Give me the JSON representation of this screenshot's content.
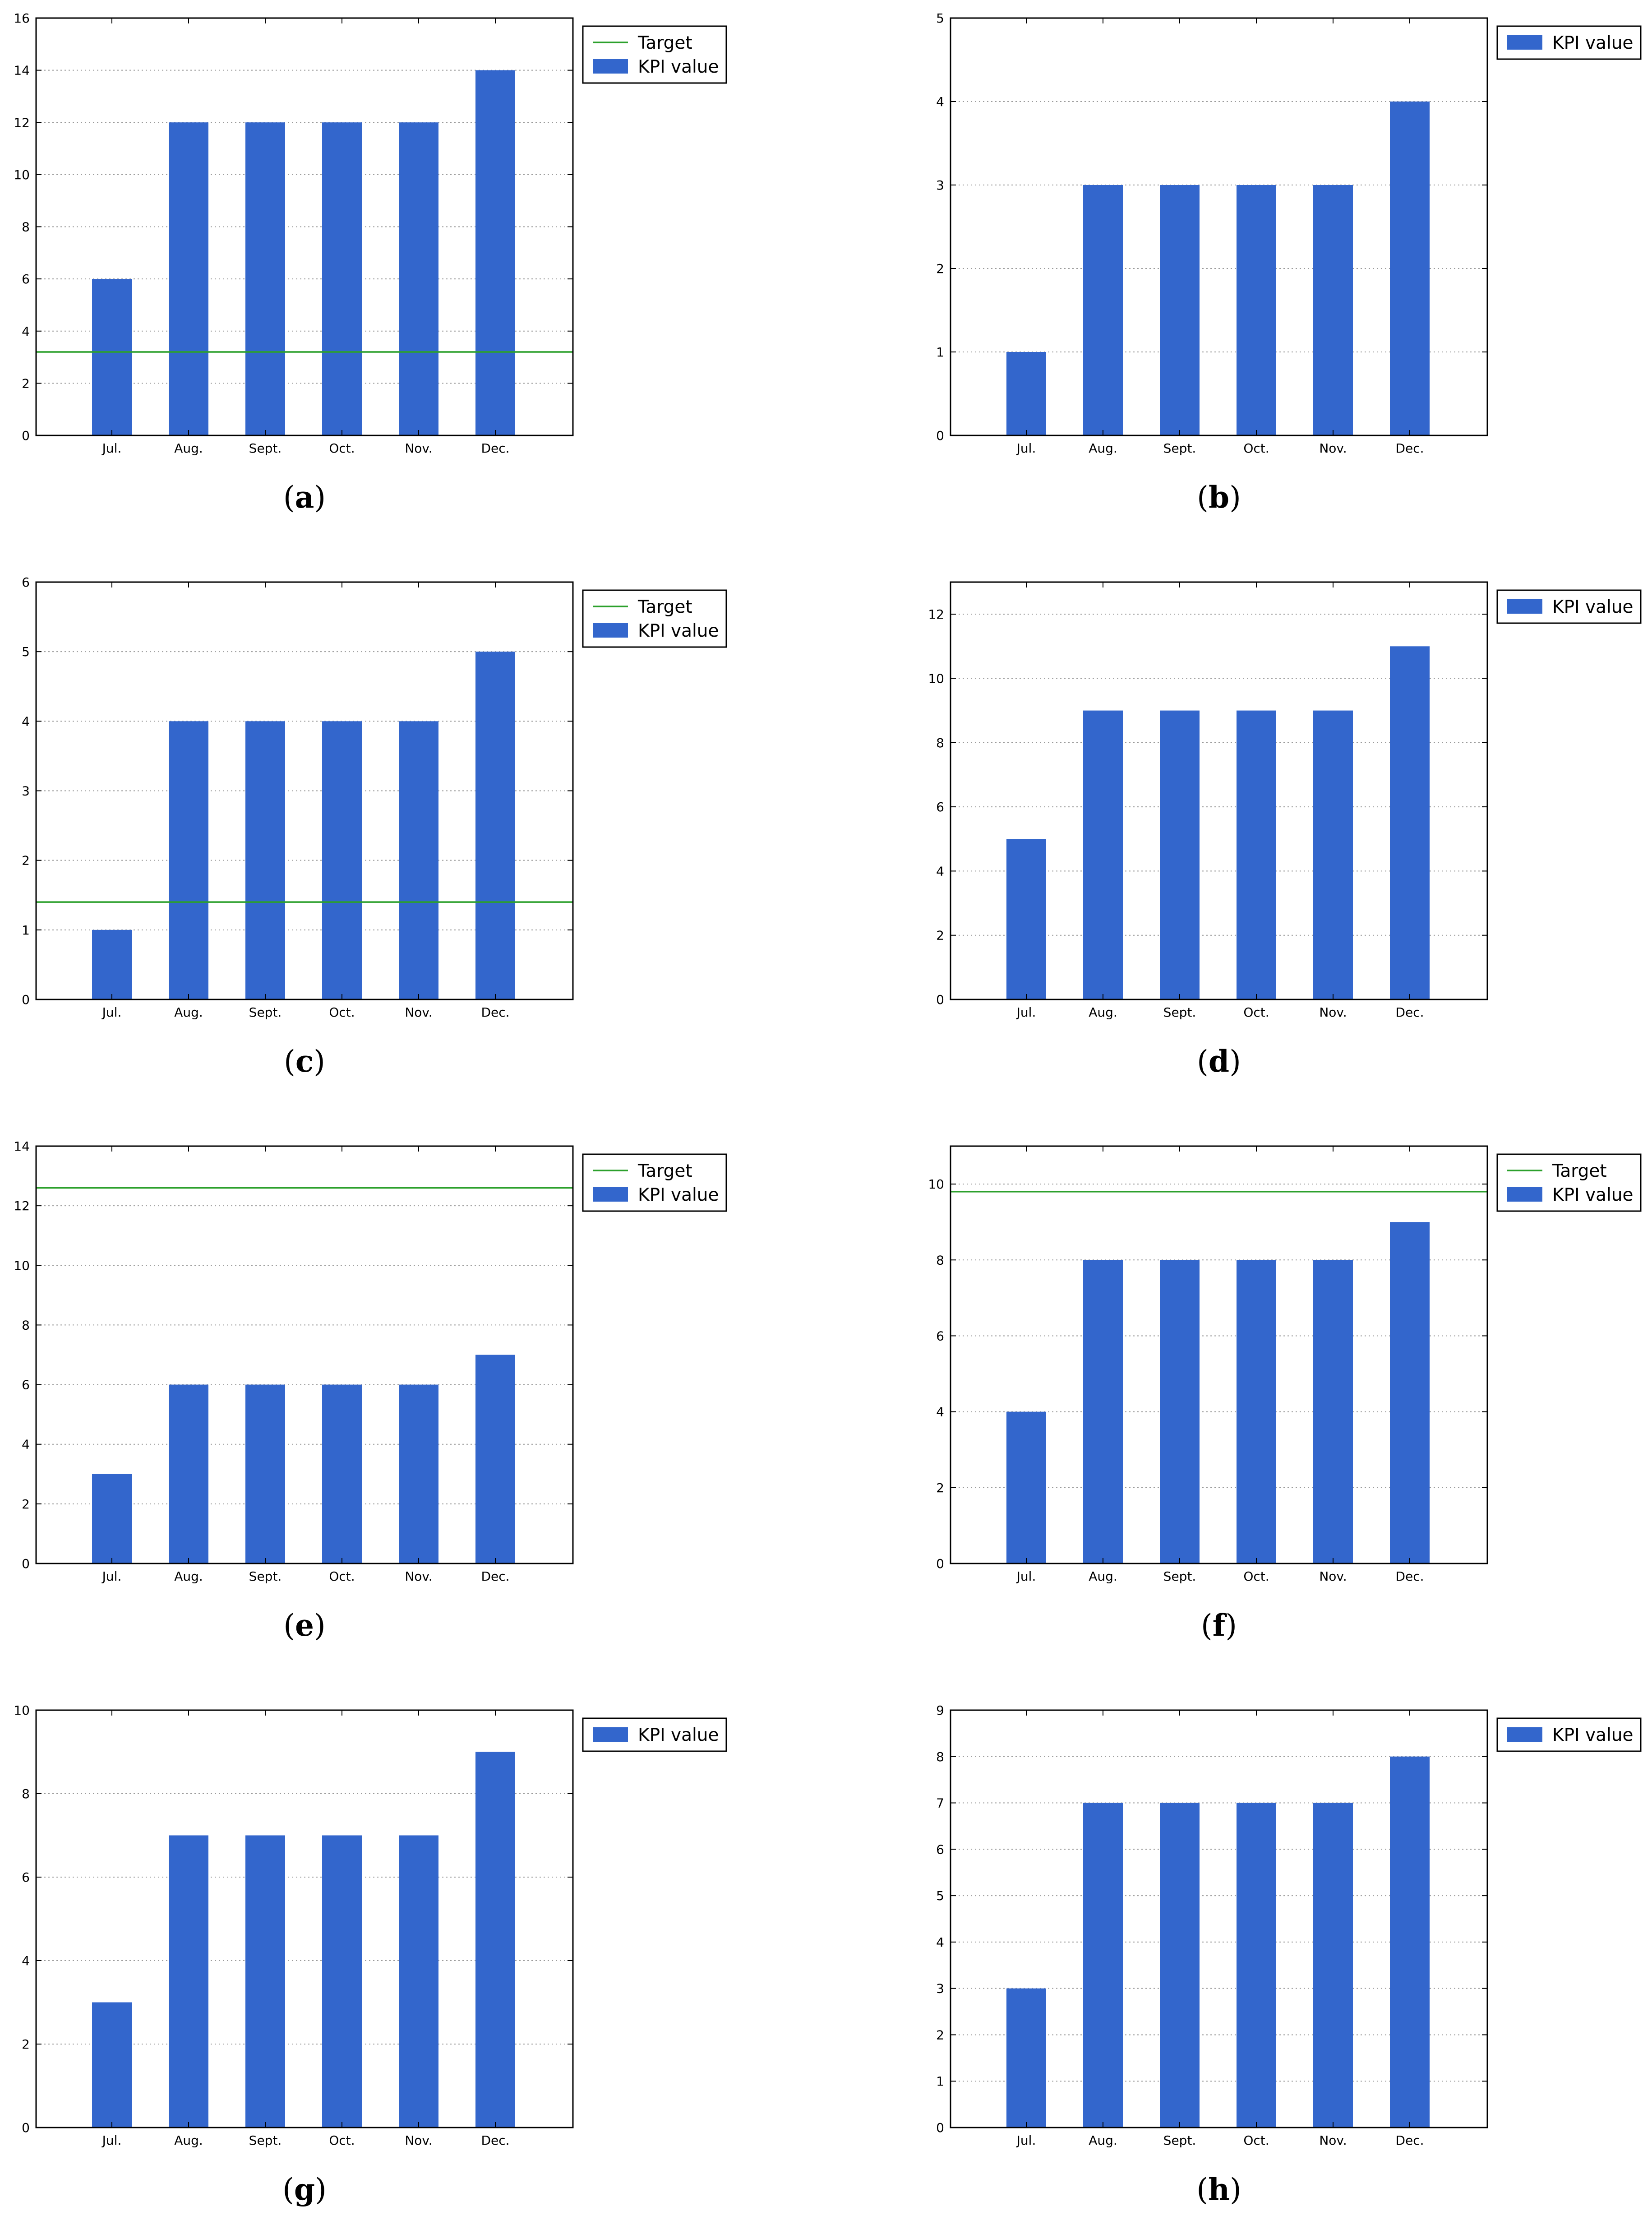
{
  "chart_data": [
    {
      "panel": "a",
      "type": "bar",
      "categories": [
        "Jul.",
        "Aug.",
        "Sept.",
        "Oct.",
        "Nov.",
        "Dec."
      ],
      "series": [
        {
          "name": "KPI value",
          "values": [
            6,
            12,
            12,
            12,
            12,
            14
          ]
        }
      ],
      "target": {
        "name": "Target",
        "value": 3.2
      },
      "ylim": [
        0,
        16
      ],
      "yticks": [
        0,
        2,
        4,
        6,
        8,
        10,
        12,
        14,
        16
      ],
      "grid": "y-dotted",
      "legend": [
        "Target",
        "KPI value"
      ],
      "legend_position": "outside-top-right",
      "caption": "a"
    },
    {
      "panel": "b",
      "type": "bar",
      "categories": [
        "Jul.",
        "Aug.",
        "Sept.",
        "Oct.",
        "Nov.",
        "Dec."
      ],
      "series": [
        {
          "name": "KPI value",
          "values": [
            1,
            3,
            3,
            3,
            3,
            4
          ]
        }
      ],
      "ylim": [
        0,
        5
      ],
      "yticks": [
        0,
        1,
        2,
        3,
        4,
        5
      ],
      "grid": "y-dotted",
      "legend": [
        "KPI value"
      ],
      "legend_position": "outside-top-right",
      "caption": "b"
    },
    {
      "panel": "c",
      "type": "bar",
      "categories": [
        "Jul.",
        "Aug.",
        "Sept.",
        "Oct.",
        "Nov.",
        "Dec."
      ],
      "series": [
        {
          "name": "KPI value",
          "values": [
            1,
            4,
            4,
            4,
            4,
            5
          ]
        }
      ],
      "target": {
        "name": "Target",
        "value": 1.4
      },
      "ylim": [
        0,
        6
      ],
      "yticks": [
        0,
        1,
        2,
        3,
        4,
        5,
        6
      ],
      "grid": "y-dotted",
      "legend": [
        "Target",
        "KPI value"
      ],
      "legend_position": "outside-top-right",
      "caption": "c"
    },
    {
      "panel": "d",
      "type": "bar",
      "categories": [
        "Jul.",
        "Aug.",
        "Sept.",
        "Oct.",
        "Nov.",
        "Dec."
      ],
      "series": [
        {
          "name": "KPI value",
          "values": [
            5,
            9,
            9,
            9,
            9,
            11
          ]
        }
      ],
      "ylim": [
        0,
        13
      ],
      "yticks": [
        0,
        2,
        4,
        6,
        8,
        10,
        12
      ],
      "grid": "y-dotted",
      "legend": [
        "KPI value"
      ],
      "legend_position": "outside-top-right",
      "caption": "d"
    },
    {
      "panel": "e",
      "type": "bar",
      "categories": [
        "Jul.",
        "Aug.",
        "Sept.",
        "Oct.",
        "Nov.",
        "Dec."
      ],
      "series": [
        {
          "name": "KPI value",
          "values": [
            3,
            6,
            6,
            6,
            6,
            7
          ]
        }
      ],
      "target": {
        "name": "Target",
        "value": 12.6
      },
      "ylim": [
        0,
        14
      ],
      "yticks": [
        0,
        2,
        4,
        6,
        8,
        10,
        12,
        14
      ],
      "grid": "y-dotted",
      "legend": [
        "Target",
        "KPI value"
      ],
      "legend_position": "outside-top-right",
      "caption": "e"
    },
    {
      "panel": "f",
      "type": "bar",
      "categories": [
        "Jul.",
        "Aug.",
        "Sept.",
        "Oct.",
        "Nov.",
        "Dec."
      ],
      "series": [
        {
          "name": "KPI value",
          "values": [
            4,
            8,
            8,
            8,
            8,
            9
          ]
        }
      ],
      "target": {
        "name": "Target",
        "value": 9.8
      },
      "ylim": [
        0,
        11
      ],
      "yticks": [
        0,
        2,
        4,
        6,
        8,
        10
      ],
      "grid": "y-dotted",
      "legend": [
        "Target",
        "KPI value"
      ],
      "legend_position": "outside-top-right",
      "caption": "f"
    },
    {
      "panel": "g",
      "type": "bar",
      "categories": [
        "Jul.",
        "Aug.",
        "Sept.",
        "Oct.",
        "Nov.",
        "Dec."
      ],
      "series": [
        {
          "name": "KPI value",
          "values": [
            3,
            7,
            7,
            7,
            7,
            9
          ]
        }
      ],
      "ylim": [
        0,
        10
      ],
      "yticks": [
        0,
        2,
        4,
        6,
        8,
        10
      ],
      "grid": "y-dotted",
      "legend": [
        "KPI value"
      ],
      "legend_position": "outside-top-right",
      "caption": "g"
    },
    {
      "panel": "h",
      "type": "bar",
      "categories": [
        "Jul.",
        "Aug.",
        "Sept.",
        "Oct.",
        "Nov.",
        "Dec."
      ],
      "series": [
        {
          "name": "KPI value",
          "values": [
            3,
            7,
            7,
            7,
            7,
            8
          ]
        }
      ],
      "ylim": [
        0,
        9
      ],
      "yticks": [
        0,
        1,
        2,
        3,
        4,
        5,
        6,
        7,
        8,
        9
      ],
      "grid": "y-dotted",
      "legend": [
        "KPI value"
      ],
      "legend_position": "outside-top-right",
      "caption": "h"
    }
  ],
  "colors": {
    "bar": "#3366cc",
    "target_line": "#2ca02c",
    "axis": "#000000",
    "grid": "#9a9a9a",
    "background": "#ffffff"
  }
}
